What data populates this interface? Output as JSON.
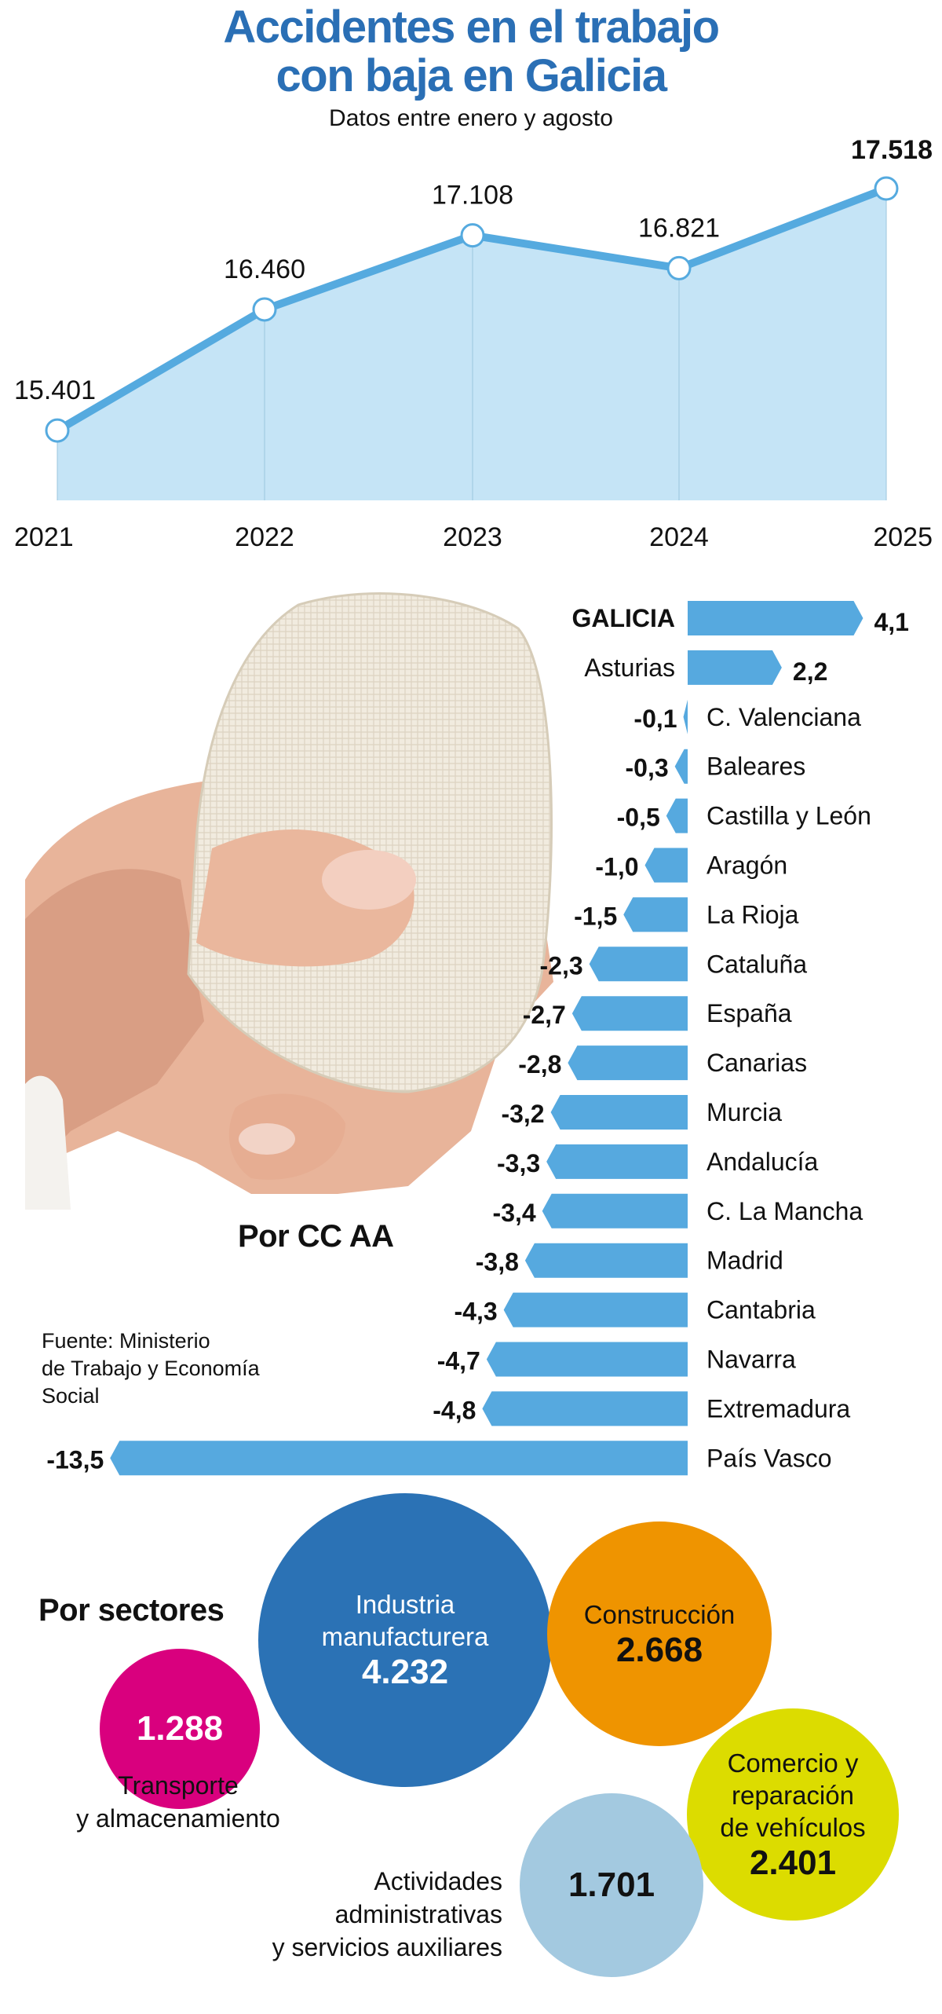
{
  "title": "Accidentes en el trabajo con baja en Galicia",
  "title_lines": [
    "Accidentes en el trabajo",
    "con baja en Galicia"
  ],
  "subtitle": "Datos entre enero y agosto",
  "colors": {
    "title": "#2a6fb5",
    "line": "#55aadf",
    "area": "#c5e4f6",
    "bars": "#56a9df",
    "industria": "#2b72b5",
    "construccion": "#ef9400",
    "transporte": "#d9007e",
    "comercio": "#dcdc00",
    "actividades": "#a3c9e0"
  },
  "photo": "bandaged-hand-photo",
  "regions_title": "Por CC AA",
  "source_lines": [
    "Fuente: Ministerio",
    "de Trabajo y Economía",
    "Social"
  ],
  "sectors_title": "Por sectores",
  "chart_data": [
    {
      "type": "area",
      "categories": [
        "2021",
        "2022",
        "2023",
        "2024",
        "2025"
      ],
      "values": [
        15401,
        16460,
        17108,
        16821,
        17518
      ],
      "data_labels": [
        "15.401",
        "16.460",
        "17.108",
        "16.821",
        "17.518"
      ],
      "highlight": "2025",
      "grid": false,
      "y_axis_visible": false
    },
    {
      "type": "bar",
      "orientation": "horizontal",
      "title": "Por CC AA",
      "categories": [
        "GALICIA",
        "Asturias",
        "C. Valenciana",
        "Baleares",
        "Castilla y León",
        "Aragón",
        "La Rioja",
        "Cataluña",
        "España",
        "Canarias",
        "Murcia",
        "Andalucía",
        "C. La Mancha",
        "Madrid",
        "Cantabria",
        "Navarra",
        "Extremadura",
        "País Vasco"
      ],
      "values": [
        4.1,
        2.2,
        -0.1,
        -0.3,
        -0.5,
        -1.0,
        -1.5,
        -2.3,
        -2.7,
        -2.8,
        -3.2,
        -3.3,
        -3.4,
        -3.8,
        -4.3,
        -4.7,
        -4.8,
        -13.5
      ],
      "data_labels": [
        "4,1",
        "2,2",
        "-0,1",
        "-0,3",
        "-0,5",
        "-1,0",
        "-1,5",
        "-2,3",
        "-2,7",
        "-2,8",
        "-3,2",
        "-3,3",
        "-3,4",
        "-3,8",
        "-4,3",
        "-4,7",
        "-4,8",
        "-13,5"
      ],
      "highlight": "GALICIA"
    },
    {
      "type": "bubble",
      "title": "Por sectores",
      "categories": [
        "Industria manufacturera",
        "Construcción",
        "Comercio y reparación de vehículos",
        "Actividades administrativas y servicios auxiliares",
        "Transporte y almacenamiento"
      ],
      "values": [
        4232,
        2668,
        2401,
        1701,
        1288
      ],
      "data_labels": [
        "4.232",
        "2.668",
        "2.401",
        "1.701",
        "1.288"
      ]
    }
  ],
  "bubbles": {
    "industria": {
      "lines": [
        "Industria",
        "manufacturera"
      ],
      "value": "4.232"
    },
    "construccion": {
      "lines": [
        "Construcción"
      ],
      "value": "2.668"
    },
    "comercio": {
      "lines": [
        "Comercio y",
        "reparación",
        "de vehículos"
      ],
      "value": "2.401"
    },
    "actividades": {
      "lines": [
        "Actividades",
        "administrativas",
        "y servicios auxiliares"
      ],
      "value": "1.701"
    },
    "transporte": {
      "lines": [
        "Transporte",
        "y almacenamiento"
      ],
      "value": "1.288"
    }
  }
}
